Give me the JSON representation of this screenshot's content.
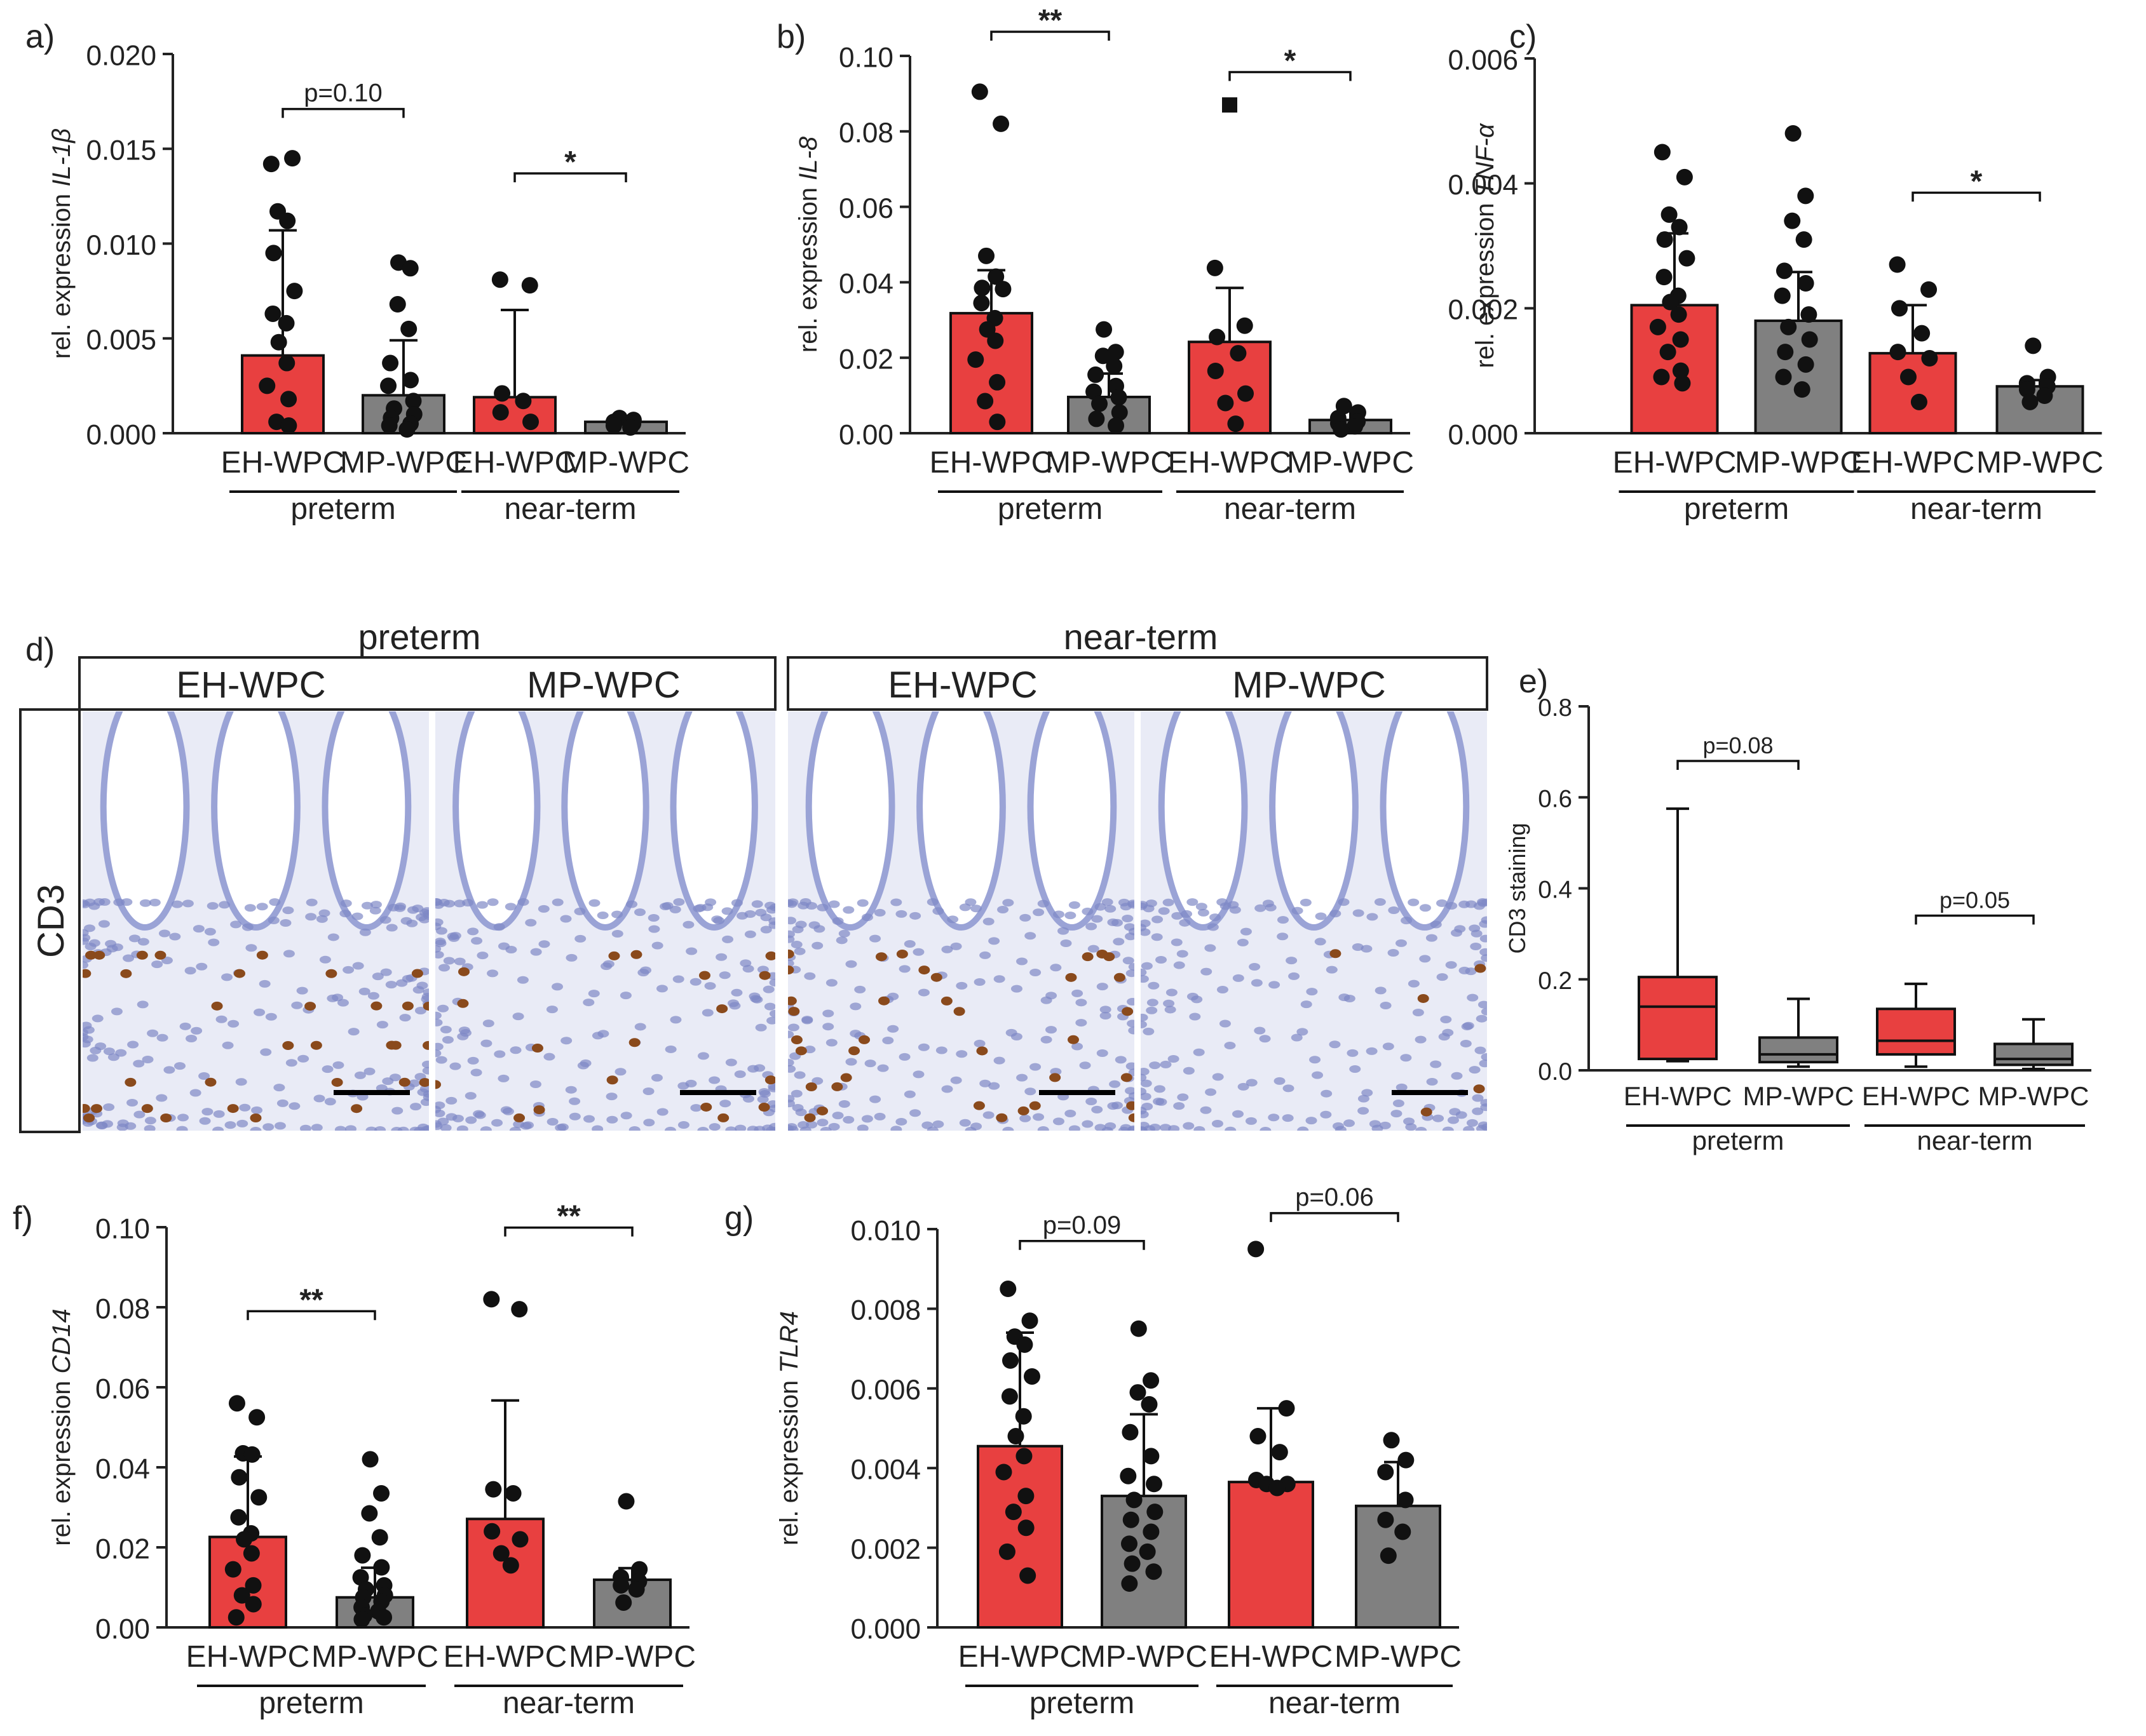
{
  "colors": {
    "eh": "#e84040",
    "mp": "#808080",
    "axis": "#222222",
    "dot": "#111111",
    "tissue": "#e9ebf6",
    "nucleus": "#7f89c6",
    "brown": "#8a4a1c"
  },
  "chart_data": [
    {
      "id": "a",
      "panel_label": "a)",
      "type": "bar",
      "ylabel_prefix": "rel. expression",
      "ylabel_gene": "IL-1β",
      "ylim": [
        0,
        0.02
      ],
      "yticks": [
        "0.000",
        "0.005",
        "0.010",
        "0.015",
        "0.020"
      ],
      "categories": [
        "EH-WPC",
        "MP-WPC",
        "EH-WPC",
        "MP-WPC"
      ],
      "groups": [
        "preterm",
        "near-term"
      ],
      "bars": [
        0.0041,
        0.002,
        0.0019,
        0.0006
      ],
      "err_hi": [
        0.0107,
        0.0049,
        0.0065,
        0.0009
      ],
      "points": [
        [
          0.0142,
          0.0145,
          0.0117,
          0.0112,
          0.0095,
          0.0075,
          0.0063,
          0.0058,
          0.0048,
          0.0037,
          0.0025,
          0.0018,
          0.0006,
          0.0004
        ],
        [
          0.009,
          0.0087,
          0.0068,
          0.0055,
          0.0037,
          0.0028,
          0.0025,
          0.0017,
          0.0013,
          0.001,
          0.0008,
          0.0005,
          0.0004,
          0.0002
        ],
        [
          0.0081,
          0.0078,
          0.0021,
          0.0017,
          0.0011,
          0.0006
        ],
        [
          0.0008,
          0.0007,
          0.0006,
          0.0005,
          0.0004,
          0.0003
        ]
      ],
      "outliers": [],
      "sig": [
        {
          "from": 0,
          "to": 1,
          "label": "p=0.10",
          "y": 0.0171
        },
        {
          "from": 2,
          "to": 3,
          "label": "*",
          "y": 0.0137
        }
      ]
    },
    {
      "id": "b",
      "panel_label": "b)",
      "type": "bar",
      "ylabel_prefix": "rel. expression",
      "ylabel_gene": "IL-8",
      "ylim": [
        0,
        0.1
      ],
      "yticks": [
        "0.00",
        "0.02",
        "0.04",
        "0.06",
        "0.08",
        "0.10"
      ],
      "categories": [
        "EH-WPC",
        "MP-WPC",
        "EH-WPC",
        "MP-WPC"
      ],
      "groups": [
        "preterm",
        "near-term"
      ],
      "bars": [
        0.0318,
        0.0096,
        0.0242,
        0.0035
      ],
      "err_hi": [
        0.0432,
        0.0158,
        0.0385,
        0.0065
      ],
      "points": [
        [
          0.0905,
          0.082,
          0.047,
          0.0415,
          0.0385,
          0.0382,
          0.0345,
          0.0305,
          0.0275,
          0.0245,
          0.0195,
          0.0135,
          0.0085,
          0.003
        ],
        [
          0.0275,
          0.0215,
          0.0205,
          0.0178,
          0.0155,
          0.0125,
          0.011,
          0.0095,
          0.0078,
          0.0055,
          0.0038,
          0.002
        ],
        [
          0.0438,
          0.0285,
          0.0255,
          0.0212,
          0.0165,
          0.0105,
          0.008,
          0.0025
        ],
        [
          0.0072,
          0.0055,
          0.004,
          0.0031,
          0.0026,
          0.0018,
          0.001
        ]
      ],
      "outliers": [
        {
          "bar": 2,
          "value": 0.087
        }
      ],
      "sig": [
        {
          "from": 0,
          "to": 1,
          "label": "**",
          "y": 0.1064
        },
        {
          "from": 2,
          "to": 3,
          "label": "*",
          "y": 0.0957
        }
      ]
    },
    {
      "id": "c",
      "panel_label": "c)",
      "type": "bar",
      "ylabel_prefix": "rel. expression",
      "ylabel_gene": "TNF-α",
      "ylim": [
        0,
        0.006
      ],
      "yticks": [
        "0.000",
        "0.002",
        "0.004",
        "0.006"
      ],
      "categories": [
        "EH-WPC",
        "MP-WPC",
        "EH-WPC",
        "MP-WPC"
      ],
      "groups": [
        "preterm",
        "near-term"
      ],
      "bars": [
        0.00205,
        0.0018,
        0.00128,
        0.00075
      ],
      "err_hi": [
        0.0032,
        0.00258,
        0.00205,
        0.00085
      ],
      "points": [
        [
          0.0045,
          0.0041,
          0.0035,
          0.0033,
          0.0031,
          0.0028,
          0.0025,
          0.0022,
          0.0021,
          0.0019,
          0.0017,
          0.0015,
          0.0013,
          0.001,
          0.0009,
          0.0008
        ],
        [
          0.0048,
          0.0038,
          0.0034,
          0.0031,
          0.0026,
          0.0024,
          0.0022,
          0.0019,
          0.0017,
          0.0015,
          0.0013,
          0.0011,
          0.0009,
          0.0007
        ],
        [
          0.0027,
          0.0023,
          0.002,
          0.0016,
          0.0013,
          0.0012,
          0.0009,
          0.0005
        ],
        [
          0.0014,
          0.0009,
          0.0008,
          0.00075,
          0.0007,
          0.0006,
          0.0005
        ]
      ],
      "outliers": [],
      "sig": [
        {
          "from": 2,
          "to": 3,
          "label": "*",
          "y": 0.00385
        }
      ]
    },
    {
      "id": "e",
      "panel_label": "e)",
      "type": "box",
      "ylabel": "CD3 staining",
      "ylim": [
        0,
        0.8
      ],
      "yticks": [
        "0.0",
        "0.2",
        "0.4",
        "0.6",
        "0.8"
      ],
      "categories": [
        "EH-WPC",
        "MP-WPC",
        "EH-WPC",
        "MP-WPC"
      ],
      "groups": [
        "preterm",
        "near-term"
      ],
      "boxes": [
        {
          "min": 0.02,
          "q1": 0.025,
          "median": 0.14,
          "q3": 0.205,
          "max": 0.575
        },
        {
          "min": 0.008,
          "q1": 0.018,
          "median": 0.035,
          "q3": 0.072,
          "max": 0.157
        },
        {
          "min": 0.008,
          "q1": 0.035,
          "median": 0.065,
          "q3": 0.135,
          "max": 0.19
        },
        {
          "min": 0.003,
          "q1": 0.012,
          "median": 0.025,
          "q3": 0.058,
          "max": 0.112
        }
      ],
      "sig": [
        {
          "from": 0,
          "to": 1,
          "label": "p=0.08",
          "y": 0.68
        },
        {
          "from": 2,
          "to": 3,
          "label": "p=0.05",
          "y": 0.34
        }
      ]
    },
    {
      "id": "f",
      "panel_label": "f)",
      "type": "bar",
      "ylabel_prefix": "rel. expression",
      "ylabel_gene": "CD14",
      "ylim": [
        0,
        0.1
      ],
      "yticks": [
        "0.00",
        "0.02",
        "0.04",
        "0.06",
        "0.08",
        "0.10"
      ],
      "categories": [
        "EH-WPC",
        "MP-WPC",
        "EH-WPC",
        "MP-WPC"
      ],
      "groups": [
        "preterm",
        "near-term"
      ],
      "bars": [
        0.0226,
        0.0075,
        0.0271,
        0.0119
      ],
      "err_hi": [
        0.0427,
        0.0149,
        0.0567,
        0.0148
      ],
      "points": [
        [
          0.056,
          0.0525,
          0.0435,
          0.0432,
          0.0375,
          0.0325,
          0.0275,
          0.0235,
          0.022,
          0.0185,
          0.0145,
          0.0105,
          0.008,
          0.0058,
          0.0025
        ],
        [
          0.042,
          0.0335,
          0.0285,
          0.0225,
          0.018,
          0.015,
          0.0125,
          0.0105,
          0.0095,
          0.008,
          0.0075,
          0.0065,
          0.005,
          0.004,
          0.003,
          0.0025,
          0.002
        ],
        [
          0.082,
          0.0795,
          0.0345,
          0.0335,
          0.024,
          0.022,
          0.0185,
          0.0155
        ],
        [
          0.0315,
          0.0145,
          0.0125,
          0.0115,
          0.0105,
          0.0095,
          0.0062
        ]
      ],
      "outliers": [],
      "sig": [
        {
          "from": 0,
          "to": 1,
          "label": "**",
          "y": 0.079
        },
        {
          "from": 2,
          "to": 3,
          "label": "**",
          "y": 0.0999
        }
      ]
    },
    {
      "id": "g",
      "panel_label": "g)",
      "type": "bar",
      "ylabel_prefix": "rel. expression",
      "ylabel_gene": "TLR4",
      "ylim": [
        0,
        0.01
      ],
      "yticks": [
        "0.000",
        "0.002",
        "0.004",
        "0.006",
        "0.008",
        "0.010"
      ],
      "categories": [
        "EH-WPC",
        "MP-WPC",
        "EH-WPC",
        "MP-WPC"
      ],
      "groups": [
        "preterm",
        "near-term"
      ],
      "bars": [
        0.00455,
        0.0033,
        0.00365,
        0.00305
      ],
      "err_hi": [
        0.0074,
        0.00535,
        0.0055,
        0.00415
      ],
      "points": [
        [
          0.0085,
          0.0077,
          0.0073,
          0.0071,
          0.0067,
          0.0063,
          0.0058,
          0.0053,
          0.0048,
          0.0043,
          0.0039,
          0.0033,
          0.0029,
          0.0025,
          0.0019,
          0.0013
        ],
        [
          0.0075,
          0.0062,
          0.0059,
          0.0056,
          0.0049,
          0.0043,
          0.0038,
          0.0036,
          0.0032,
          0.0029,
          0.0027,
          0.0024,
          0.0021,
          0.0019,
          0.0016,
          0.0014,
          0.0011
        ],
        [
          0.0095,
          0.0055,
          0.0048,
          0.0044,
          0.0037,
          0.0036,
          0.0036,
          0.0035
        ],
        [
          0.0047,
          0.0042,
          0.0039,
          0.0032,
          0.0027,
          0.0024,
          0.0018
        ]
      ],
      "outliers": [],
      "sig": [
        {
          "from": 0,
          "to": 1,
          "label": "p=0.09",
          "y": 0.0097
        },
        {
          "from": 2,
          "to": 3,
          "label": "p=0.06",
          "y": 0.0104
        }
      ]
    }
  ],
  "micrographs": {
    "panel_label": "d)",
    "row_label": "CD3",
    "groups": [
      "preterm",
      "near-term"
    ],
    "columns": [
      "EH-WPC",
      "MP-WPC",
      "EH-WPC",
      "MP-WPC"
    ],
    "positive_cell_density": [
      0.55,
      0.3,
      0.6,
      0.08
    ]
  }
}
